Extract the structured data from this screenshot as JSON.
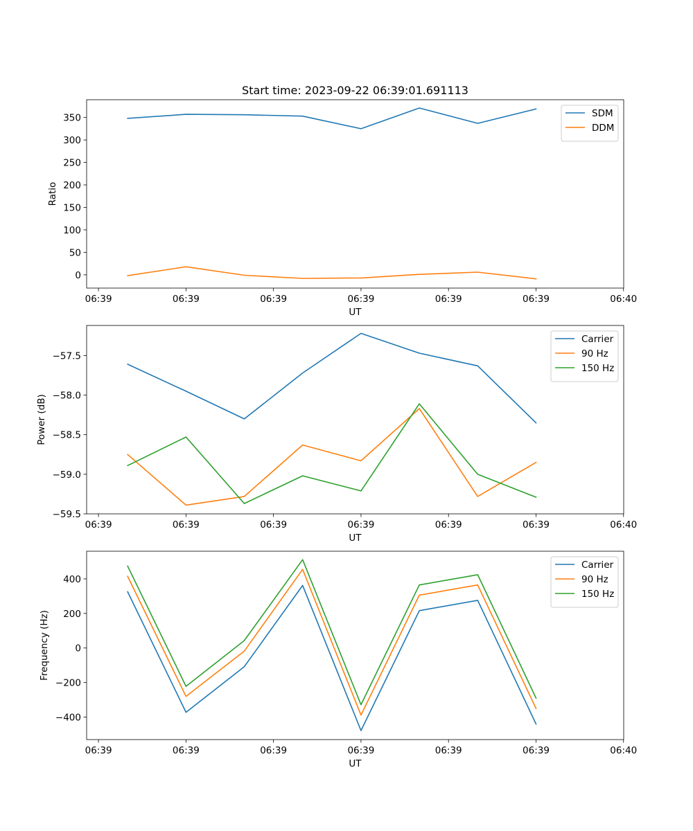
{
  "chart_data": [
    {
      "type": "line",
      "title": "Start time: 2023-09-22 06:39:01.691113",
      "xlabel": "UT",
      "ylabel": "Ratio",
      "x_tick_labels": [
        "06:39",
        "06:39",
        "06:39",
        "06:39",
        "06:39",
        "06:39",
        "06:40"
      ],
      "y_ticks": [
        0,
        50,
        100,
        150,
        200,
        250,
        300,
        350
      ],
      "ylim": [
        -29.5,
        389.5
      ],
      "x": [
        1,
        2,
        3,
        4,
        5,
        6,
        7,
        8
      ],
      "xlim": [
        0.297,
        9.503
      ],
      "x_tick_positions": [
        0.5,
        2.0,
        3.5,
        5.0,
        6.5,
        8.0,
        9.5
      ],
      "legend_position": "upper-right",
      "series": [
        {
          "name": "SDM",
          "color": "#1f77b4",
          "values": [
            348,
            357,
            356,
            353,
            325,
            371,
            337,
            369
          ]
        },
        {
          "name": "DDM",
          "color": "#ff7f0e",
          "values": [
            -2,
            18,
            -1,
            -8,
            -7,
            1,
            6,
            -9
          ]
        }
      ]
    },
    {
      "type": "line",
      "title": "",
      "xlabel": "UT",
      "ylabel": "Power (dB)",
      "x_tick_labels": [
        "06:39",
        "06:39",
        "06:39",
        "06:39",
        "06:39",
        "06:39",
        "06:40"
      ],
      "y_ticks": [
        -59.5,
        -59.0,
        -58.5,
        -58.0,
        -57.5
      ],
      "y_tick_labels": [
        "−59.5",
        "−59.0",
        "−58.5",
        "−58.0",
        "−57.5"
      ],
      "ylim": [
        -59.5,
        -57.12
      ],
      "x": [
        1,
        2,
        3,
        4,
        5,
        6,
        7,
        8
      ],
      "xlim": [
        0.297,
        9.503
      ],
      "x_tick_positions": [
        0.5,
        2.0,
        3.5,
        5.0,
        6.5,
        8.0,
        9.5
      ],
      "legend_position": "upper-right",
      "series": [
        {
          "name": "Carrier",
          "color": "#1f77b4",
          "values": [
            -57.61,
            -57.95,
            -58.3,
            -57.72,
            -57.22,
            -57.47,
            -57.63,
            -58.35
          ]
        },
        {
          "name": "90 Hz",
          "color": "#ff7f0e",
          "values": [
            -58.75,
            -59.39,
            -59.28,
            -58.63,
            -58.83,
            -58.17,
            -59.28,
            -58.85
          ]
        },
        {
          "name": "150 Hz",
          "color": "#2ca02c",
          "values": [
            -58.89,
            -58.53,
            -59.37,
            -59.02,
            -59.21,
            -58.11,
            -59.0,
            -59.29
          ]
        }
      ]
    },
    {
      "type": "line",
      "title": "",
      "xlabel": "UT",
      "ylabel": "Frequency (Hz)",
      "x_tick_labels": [
        "06:39",
        "06:39",
        "06:39",
        "06:39",
        "06:39",
        "06:39",
        "06:40"
      ],
      "y_ticks": [
        -400,
        -200,
        0,
        200,
        400
      ],
      "y_tick_labels": [
        "−400",
        "−200",
        "0",
        "200",
        "400"
      ],
      "ylim": [
        -530,
        560
      ],
      "x": [
        1,
        2,
        3,
        4,
        5,
        6,
        7,
        8
      ],
      "xlim": [
        0.297,
        9.503
      ],
      "x_tick_positions": [
        0.5,
        2.0,
        3.5,
        5.0,
        6.5,
        8.0,
        9.5
      ],
      "legend_position": "upper-right",
      "series": [
        {
          "name": "Carrier",
          "color": "#1f77b4",
          "values": [
            325,
            -372,
            -108,
            362,
            -478,
            216,
            276,
            -440
          ]
        },
        {
          "name": "90 Hz",
          "color": "#ff7f0e",
          "values": [
            415,
            -280,
            -18,
            455,
            -388,
            306,
            365,
            -350
          ]
        },
        {
          "name": "150 Hz",
          "color": "#2ca02c",
          "values": [
            474,
            -222,
            43,
            511,
            -328,
            365,
            424,
            -290
          ]
        }
      ]
    }
  ]
}
